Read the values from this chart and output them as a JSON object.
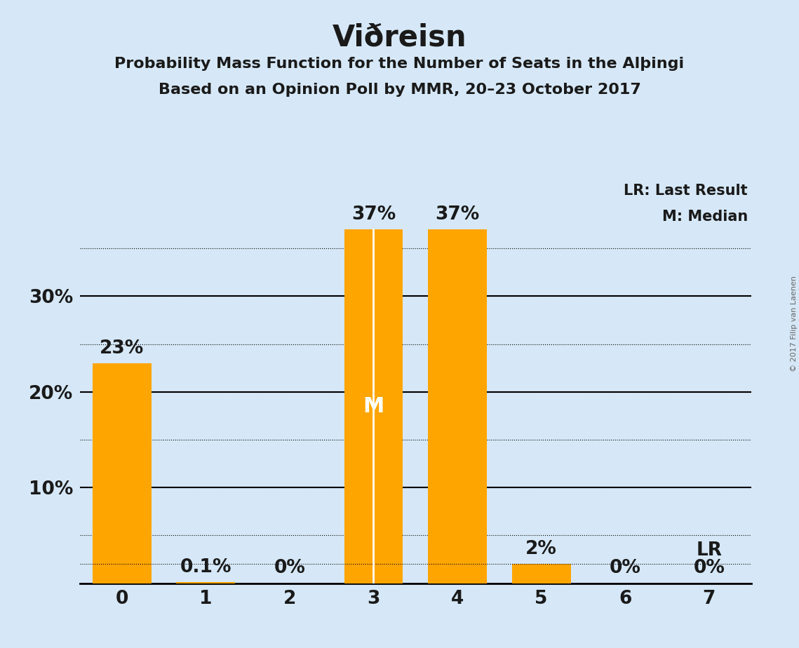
{
  "title": "Viðreisn",
  "subtitle1": "Probability Mass Function for the Number of Seats in the Alþingi",
  "subtitle2": "Based on an Opinion Poll by MMR, 20–23 October 2017",
  "copyright": "© 2017 Filip van Laenen",
  "categories": [
    0,
    1,
    2,
    3,
    4,
    5,
    6,
    7
  ],
  "values": [
    23,
    0.1,
    0,
    37,
    37,
    2,
    0,
    0
  ],
  "labels": [
    "23%",
    "0.1%",
    "0%",
    "37%",
    "37%",
    "2%",
    "0%",
    "0%"
  ],
  "bar_color": "#FFA500",
  "median_bar": 3,
  "lr_value": 2,
  "median_label": "M",
  "lr_label": "LR",
  "legend_lr": "LR: Last Result",
  "legend_m": "M: Median",
  "background_color": "#D6E8F7",
  "title_fontsize": 30,
  "subtitle_fontsize": 16,
  "label_fontsize": 19,
  "tick_fontsize": 19,
  "yticks": [
    10,
    20,
    30
  ],
  "ylim": [
    0,
    42
  ],
  "xlim": [
    -0.5,
    7.5
  ],
  "dotted_lines": [
    5,
    10,
    15,
    20,
    25,
    30,
    35
  ],
  "solid_lines": [
    10,
    20,
    30
  ],
  "text_color": "#1a1a1a"
}
